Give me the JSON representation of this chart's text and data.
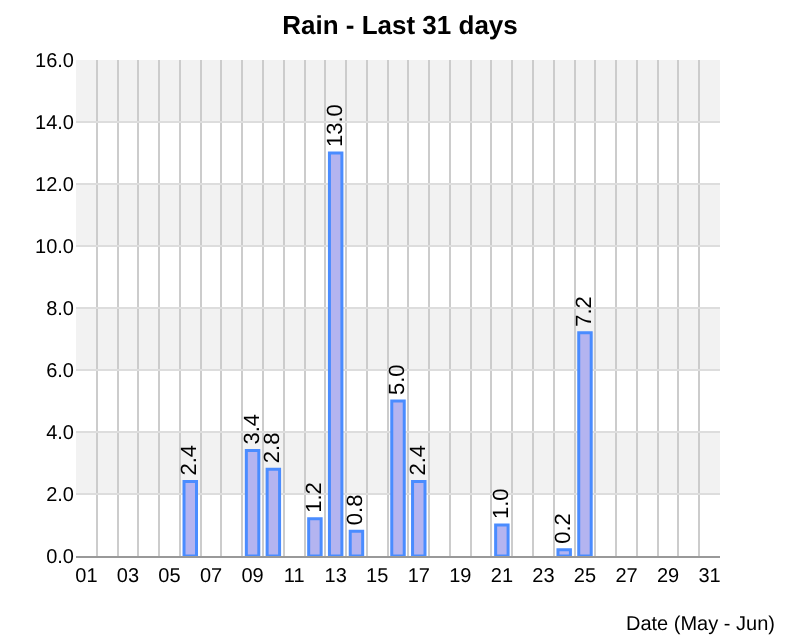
{
  "chart_data": {
    "type": "bar",
    "title": "Rain - Last 31 days",
    "xlabel": "Date (May - Jun)",
    "categories": [
      "01",
      null,
      "03",
      null,
      "05",
      null,
      "07",
      null,
      "09",
      null,
      "11",
      null,
      "13",
      null,
      "15",
      null,
      "17",
      null,
      "19",
      null,
      "21",
      null,
      "23",
      null,
      "25",
      null,
      "27",
      null,
      "29",
      null,
      "31"
    ],
    "values": [
      null,
      null,
      null,
      null,
      null,
      2.4,
      null,
      null,
      3.4,
      2.8,
      null,
      1.2,
      13.0,
      0.8,
      null,
      5.0,
      2.4,
      null,
      null,
      null,
      1.0,
      null,
      null,
      0.2,
      7.2,
      null,
      null,
      null,
      null,
      null,
      null
    ],
    "value_labels": [
      null,
      null,
      null,
      null,
      null,
      "2.4",
      null,
      null,
      "3.4",
      "2.8",
      null,
      "1.2",
      "13.0",
      "0.8",
      null,
      "5.0",
      "2.4",
      null,
      null,
      null,
      "1.0",
      null,
      null,
      "0.2",
      "7.2",
      null,
      null,
      null,
      null,
      null,
      null
    ],
    "color": "#b4b4f0",
    "ylim": [
      0,
      16
    ],
    "yticks": [
      {
        "value": 0,
        "label": "0.0"
      },
      {
        "value": 2,
        "label": "2.0"
      },
      {
        "value": 4,
        "label": "4.0"
      },
      {
        "value": 6,
        "label": "6.0"
      },
      {
        "value": 8,
        "label": "8.0"
      },
      {
        "value": 10,
        "label": "10.0"
      },
      {
        "value": 12,
        "label": "12.0"
      },
      {
        "value": 14,
        "label": "14.0"
      },
      {
        "value": 16,
        "label": "16.0"
      }
    ],
    "grid": true
  }
}
